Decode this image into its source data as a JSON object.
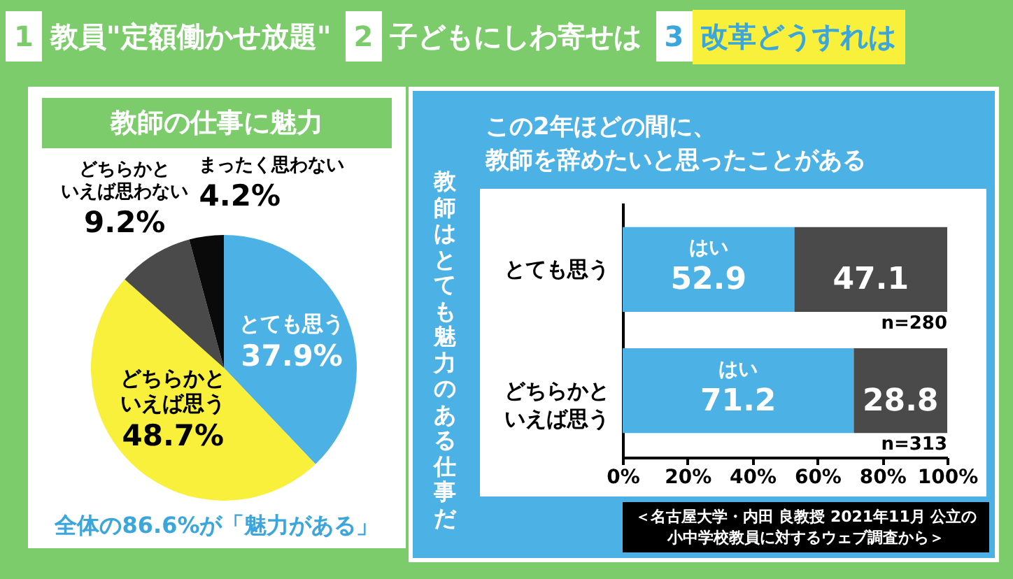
{
  "chart_data": [
    {
      "type": "other",
      "annotations": [
        "1",
        "教員\"定額働かせ放題\"",
        "2",
        "子どもにしわ寄せは",
        "3",
        "改革どうすれは"
      ]
    },
    {
      "type": "pie",
      "title": "教師の仕事に魅力",
      "categories": [
        "とても思う",
        "どちらかといえば思う",
        "どちらかといえば思わない",
        "まったく思わない"
      ],
      "values": [
        37.9,
        48.7,
        9.2,
        4.2
      ],
      "colors": [
        "#4cb1e4",
        "#f8f03a",
        "#4a4a4a",
        "#0a0a0a"
      ],
      "value_labels": [
        "37.9%",
        "48.7%",
        "9.2%",
        "4.2%"
      ],
      "annotations": [
        "全体の86.6%が「魅力がある」"
      ]
    },
    {
      "type": "bar",
      "orientation": "horizontal",
      "stacked": true,
      "title": "この2年ほどの間に、",
      "subtitle": "教師を辞めたいと思ったことがある",
      "ylabel": "教師はとても魅力のある仕事だ",
      "categories": [
        "とても思う",
        "どちらかといえば思う"
      ],
      "series": [
        {
          "name": "はい",
          "color": "#4cb1e4",
          "values": [
            52.9,
            71.2
          ]
        },
        {
          "color": "#4a4a4a",
          "values": [
            47.1,
            28.8
          ]
        }
      ],
      "xlim": [
        0,
        100
      ],
      "xticks": [
        {
          "value": 0,
          "label": "0%"
        },
        {
          "value": 20,
          "label": "20%"
        },
        {
          "value": 40,
          "label": "40%"
        },
        {
          "value": 60,
          "label": "60%"
        },
        {
          "value": 80,
          "label": "80%"
        },
        {
          "value": 100,
          "label": "100%"
        }
      ],
      "data_labels": true,
      "annotations": [
        {
          "text": "n=280",
          "x": 100,
          "y": "とても思う"
        },
        {
          "text": "n=313",
          "x": 100,
          "y": "どちらかといえば思う"
        },
        "＜名古屋大学・内田 良教授 2021年11月 公立の小中学校教員に対するウェブ調査から＞"
      ]
    }
  ]
}
